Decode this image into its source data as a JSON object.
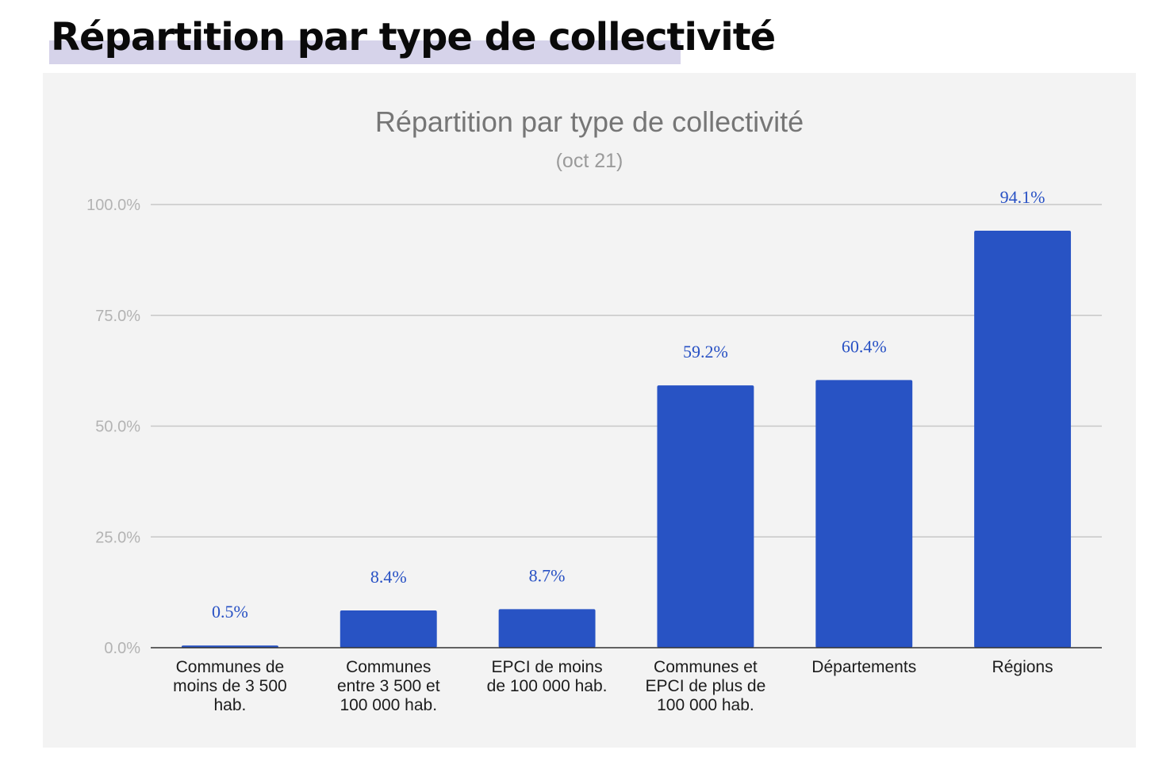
{
  "page": {
    "heading": "Répartition par type de collectivité"
  },
  "chart_data": {
    "type": "bar",
    "title": "Répartition par type de collectivité",
    "subtitle": "(oct 21)",
    "xlabel": "",
    "ylabel": "",
    "ylim": [
      0,
      100
    ],
    "y_ticks": [
      "0.0%",
      "25.0%",
      "50.0%",
      "75.0%",
      "100.0%"
    ],
    "y_tick_values": [
      0,
      25,
      50,
      75,
      100
    ],
    "grid": true,
    "bar_color": "#2853c4",
    "label_color": "#2851c4",
    "categories": [
      [
        "Communes de",
        "moins de 3 500",
        "hab."
      ],
      [
        "Communes",
        "entre 3 500 et",
        "100 000 hab."
      ],
      [
        "EPCI de moins",
        "de 100 000 hab."
      ],
      [
        "Communes et",
        "EPCI de plus de",
        "100 000 hab."
      ],
      [
        "Départements"
      ],
      [
        "Régions"
      ]
    ],
    "values": [
      0.5,
      8.4,
      8.7,
      59.2,
      60.4,
      94.1
    ],
    "value_labels": [
      "0.5%",
      "8.4%",
      "8.7%",
      "59.2%",
      "60.4%",
      "94.1%"
    ]
  }
}
